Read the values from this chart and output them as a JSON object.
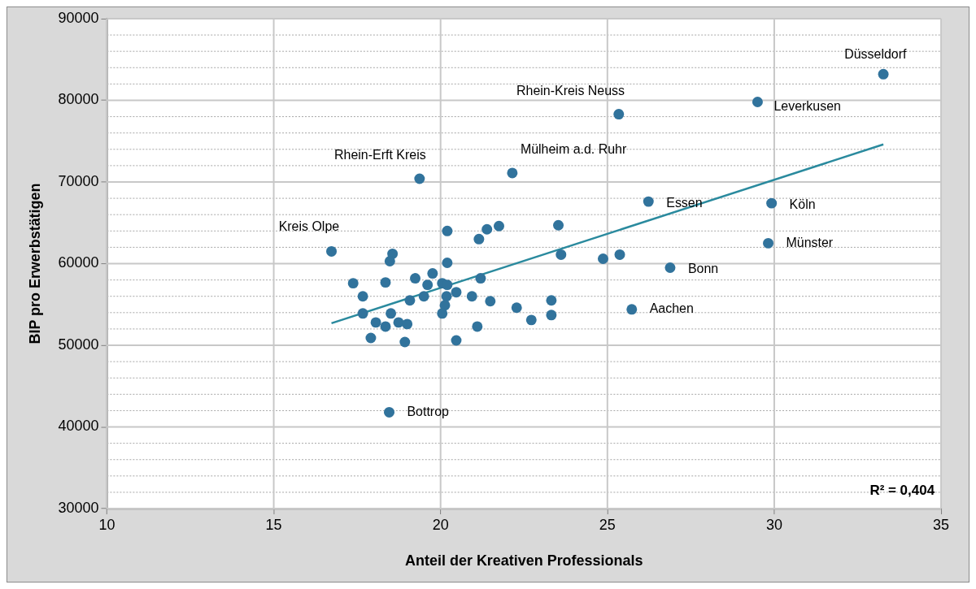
{
  "chart_data": {
    "type": "scatter",
    "xlabel": "Anteil der Kreativen Professionals",
    "ylabel": "BIP pro Erwerbstätigen",
    "xlim": [
      10,
      35
    ],
    "xticks": [
      10,
      15,
      20,
      25,
      30,
      35
    ],
    "ylim": [
      30000,
      90000
    ],
    "yticks": [
      30000,
      {
        "value": 32000,
        "label": null
      },
      {
        "value": 34000,
        "label": null
      },
      {
        "value": 36000,
        "label": null
      },
      {
        "value": 38000,
        "label": null
      },
      40000,
      {
        "value": 42000,
        "label": null
      },
      {
        "value": 44000,
        "label": null
      },
      {
        "value": 46000,
        "label": null
      },
      {
        "value": 48000,
        "label": null
      },
      50000,
      {
        "value": 52000,
        "label": null
      },
      {
        "value": 54000,
        "label": null
      },
      {
        "value": 56000,
        "label": null
      },
      {
        "value": 58000,
        "label": null
      },
      60000,
      {
        "value": 62000,
        "label": null
      },
      {
        "value": 64000,
        "label": null
      },
      {
        "value": 66000,
        "label": null
      },
      {
        "value": 68000,
        "label": null
      },
      70000,
      {
        "value": 72000,
        "label": null
      },
      {
        "value": 74000,
        "label": null
      },
      {
        "value": 76000,
        "label": null
      },
      {
        "value": 78000,
        "label": null
      },
      80000,
      {
        "value": 82000,
        "label": null
      },
      {
        "value": 84000,
        "label": null
      },
      {
        "value": 86000,
        "label": null
      },
      {
        "value": 88000,
        "label": null
      },
      90000
    ],
    "grid": true,
    "legend": false,
    "marker": "circle",
    "series": [
      {
        "type": "scatter",
        "color": "#31739c",
        "x": [
          16.73,
          18.56,
          18.48,
          17.38,
          18.35,
          17.67,
          17.67,
          18.06,
          18.35,
          17.91,
          18.51,
          18.74,
          19.0,
          18.93,
          19.08,
          19.24,
          19.5,
          19.61,
          19.76,
          20.05,
          20.2,
          20.2,
          20.2,
          20.18,
          20.13,
          20.05,
          20.47,
          20.47,
          20.94,
          21.15,
          21.39,
          21.75,
          21.2,
          21.49,
          21.1,
          22.28,
          22.72,
          23.53,
          23.61,
          24.87,
          25.37,
          23.32,
          23.32,
          25.73,
          26.88,
          18.46,
          33.27,
          29.5,
          25.34,
          26.23,
          29.92,
          29.82,
          22.15,
          19.37
        ],
        "values": [
          61500,
          61200,
          60300,
          57600,
          57700,
          56000,
          53900,
          52800,
          52300,
          50900,
          53900,
          52800,
          52600,
          50400,
          55500,
          58200,
          56000,
          57400,
          58800,
          57600,
          57400,
          60100,
          64000,
          56000,
          54900,
          53900,
          56500,
          50600,
          56000,
          63000,
          64200,
          64600,
          58200,
          55400,
          52300,
          54600,
          53100,
          64700,
          61100,
          60600,
          61100,
          55500,
          53700,
          54400,
          59500,
          41800,
          83200,
          79800,
          78300,
          67600,
          67400,
          62500,
          71100,
          70400
        ]
      },
      {
        "type": "line",
        "color": "#2a8a9e",
        "marker": "none",
        "line_style": "solid",
        "x": [
          16.73,
          33.27
        ],
        "values": [
          52700,
          74600
        ]
      }
    ],
    "annotations": [
      {
        "text": "Kreis Olpe",
        "x": 16.73,
        "y": 61500
      },
      {
        "text": "Rhein-Erft Kreis",
        "x": 19.37,
        "y": 70400
      },
      {
        "text": "Mülheim a.d. Ruhr",
        "x": 22.15,
        "y": 71100
      },
      {
        "text": "Rhein-Kreis Neuss",
        "x": 25.34,
        "y": 78300
      },
      {
        "text": "Düsseldorf",
        "x": 33.27,
        "y": 83200
      },
      {
        "text": "Leverkusen",
        "x": 29.5,
        "y": 79800
      },
      {
        "text": "Essen",
        "x": 26.23,
        "y": 67600
      },
      {
        "text": "Köln",
        "x": 29.92,
        "y": 67400
      },
      {
        "text": "Münster",
        "x": 29.82,
        "y": 62500
      },
      {
        "text": "Bonn",
        "x": 26.88,
        "y": 59500
      },
      {
        "text": "Aachen",
        "x": 25.73,
        "y": 54400
      },
      {
        "text": "Bottrop",
        "x": 18.46,
        "y": 41800
      },
      "R² = 0,404"
    ]
  }
}
